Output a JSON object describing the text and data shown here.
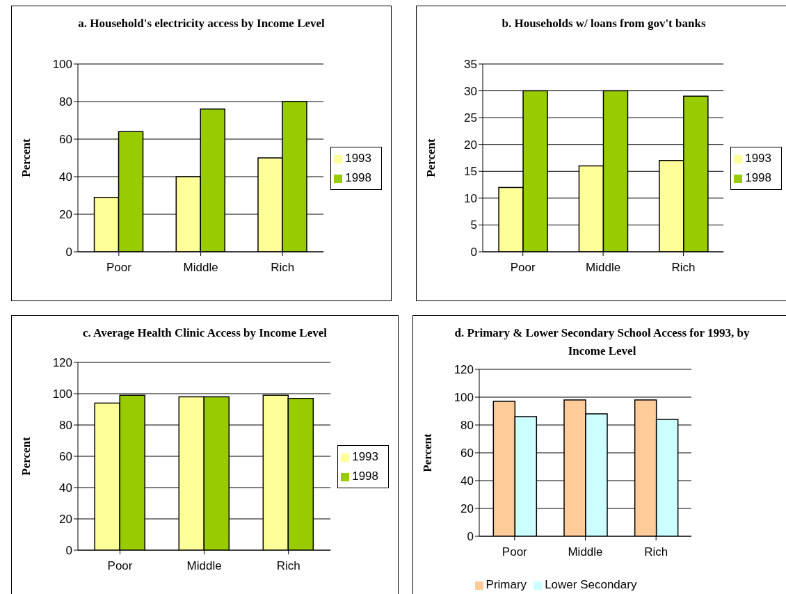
{
  "chart_data": [
    {
      "type": "bar",
      "title": "a. Household's electricity access by Income Level",
      "ylabel": "Percent",
      "categories": [
        "Poor",
        "Middle",
        "Rich"
      ],
      "series": [
        {
          "name": "1993",
          "color": "#ffff99",
          "values": [
            29,
            40,
            50
          ]
        },
        {
          "name": "1998",
          "color": "#99cc00",
          "values": [
            64,
            76,
            80
          ]
        }
      ],
      "ylim": [
        0,
        100
      ],
      "yticks": [
        0,
        20,
        40,
        60,
        80,
        100
      ],
      "grid": "y",
      "legend": "right"
    },
    {
      "type": "bar",
      "title": "b. Households w/ loans from gov't banks",
      "ylabel": "Percent",
      "categories": [
        "Poor",
        "Middle",
        "Rich"
      ],
      "series": [
        {
          "name": "1993",
          "color": "#ffff99",
          "values": [
            12,
            16,
            17
          ]
        },
        {
          "name": "1998",
          "color": "#99cc00",
          "values": [
            30,
            30,
            29
          ]
        }
      ],
      "ylim": [
        0,
        35
      ],
      "yticks": [
        0,
        5,
        10,
        15,
        20,
        25,
        30,
        35
      ],
      "grid": "y",
      "legend": "right"
    },
    {
      "type": "bar",
      "title": "c. Average Health Clinic Access by Income Level",
      "ylabel": "Percent",
      "categories": [
        "Poor",
        "Middle",
        "Rich"
      ],
      "series": [
        {
          "name": "1993",
          "color": "#ffff99",
          "values": [
            94,
            98,
            99
          ]
        },
        {
          "name": "1998",
          "color": "#99cc00",
          "values": [
            99,
            98,
            97
          ]
        }
      ],
      "ylim": [
        0,
        120
      ],
      "yticks": [
        0,
        20,
        40,
        60,
        80,
        100,
        120
      ],
      "grid": "y",
      "legend": "right"
    },
    {
      "type": "bar",
      "title": "d. Primary & Lower Secondary School Access for 1993, by Income Level",
      "ylabel": "Percent",
      "categories": [
        "Poor",
        "Middle",
        "Rich"
      ],
      "series": [
        {
          "name": "Primary",
          "color": "#ffcc99",
          "values": [
            97,
            98,
            98
          ]
        },
        {
          "name": "Lower Secondary",
          "color": "#ccffff",
          "values": [
            86,
            88,
            84
          ]
        }
      ],
      "ylim": [
        0,
        120
      ],
      "yticks": [
        0,
        20,
        40,
        60,
        80,
        100,
        120
      ],
      "grid": "y",
      "legend": "bottom"
    }
  ]
}
